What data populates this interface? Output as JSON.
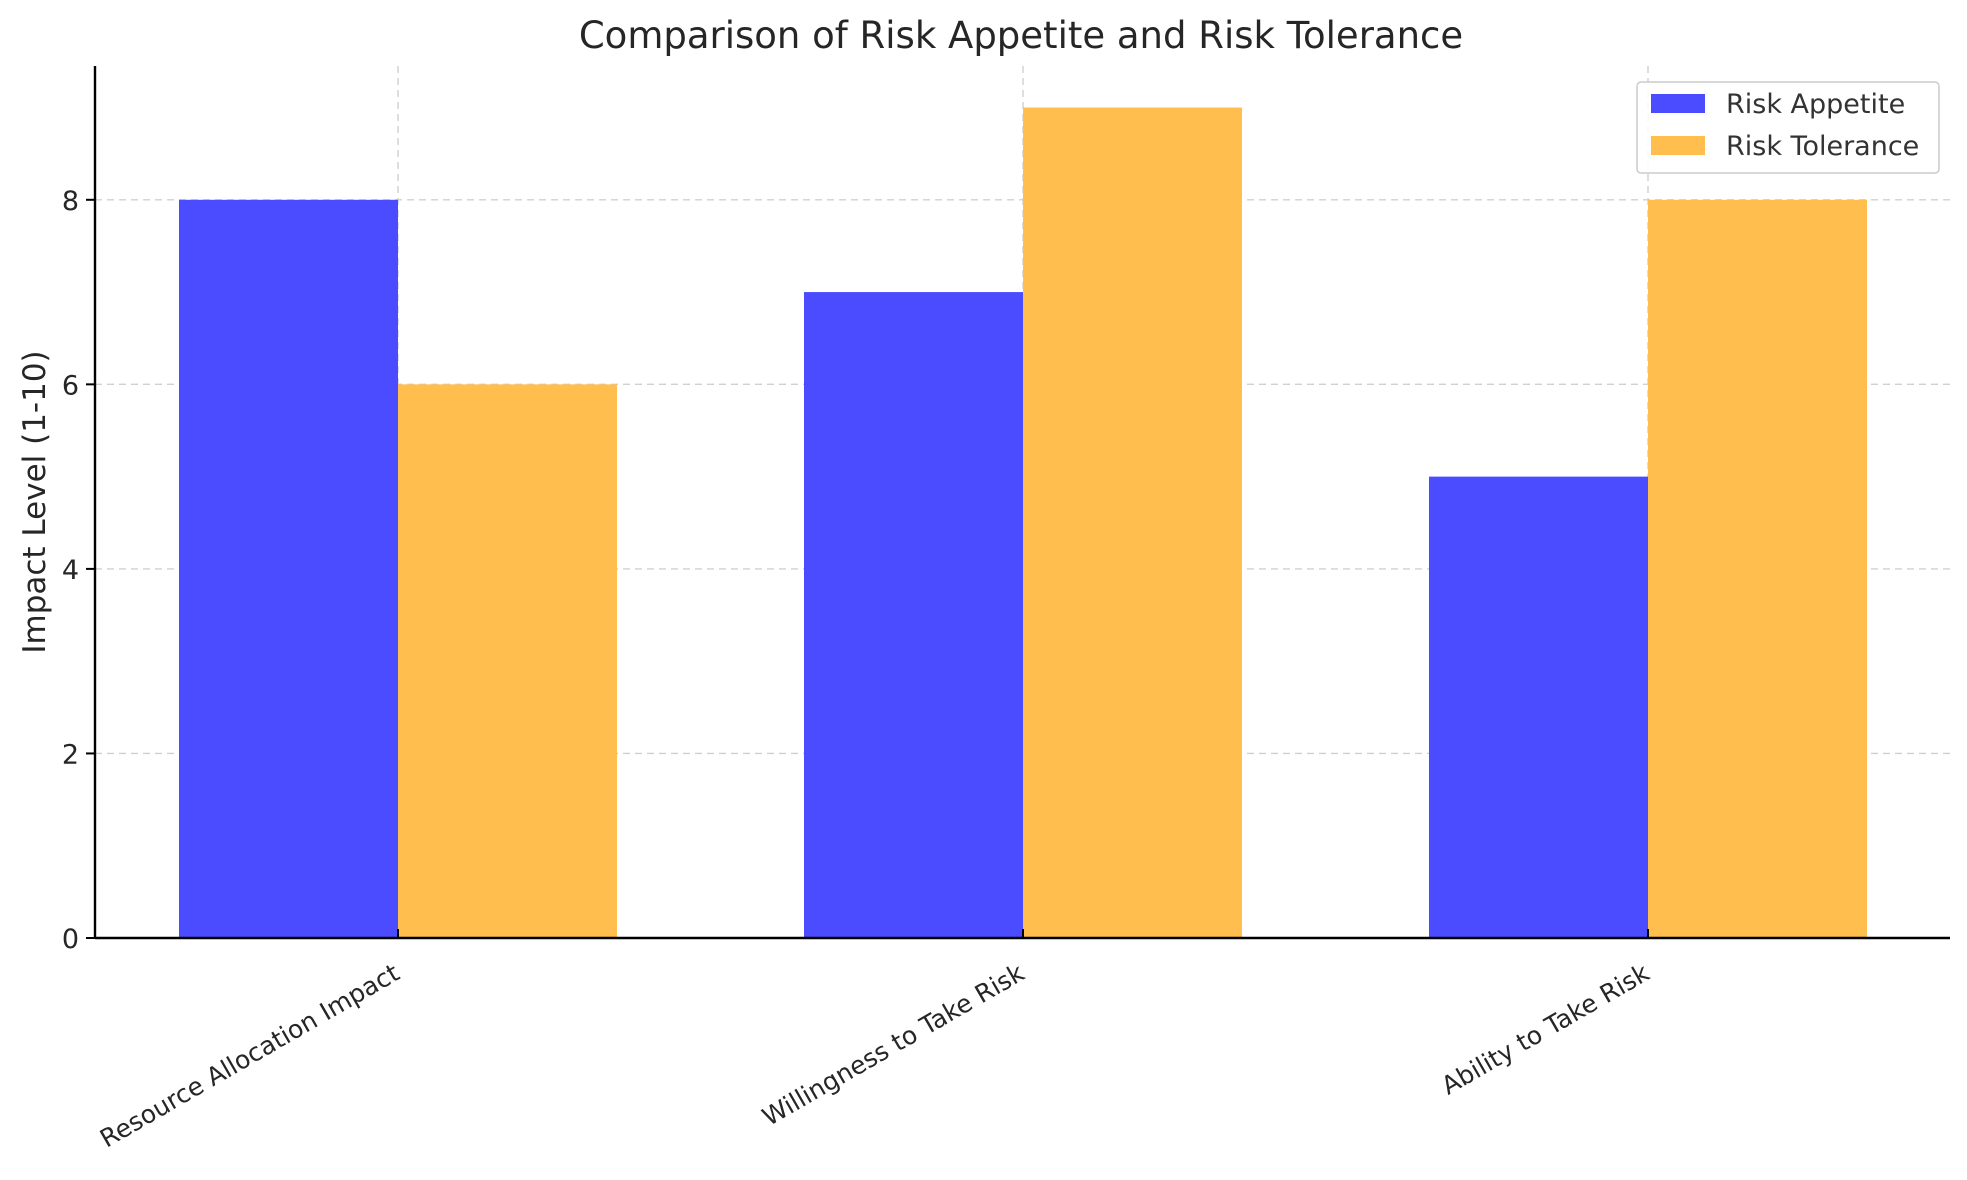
{
  "chart_data": {
    "type": "bar",
    "title": "Comparison of Risk Appetite and Risk Tolerance",
    "xlabel": "",
    "ylabel": "Impact Level (1-10)",
    "categories": [
      "Resource Allocation Impact",
      "Willingness to Take Risk",
      "Ability to Take Risk"
    ],
    "series": [
      {
        "name": "Risk Appetite",
        "values": [
          8,
          7,
          5
        ],
        "color": "#4b4bff"
      },
      {
        "name": "Risk Tolerance",
        "values": [
          6,
          9,
          8
        ],
        "color": "#ffbe4d"
      }
    ],
    "ylim": [
      0,
      9.45
    ],
    "yticks": [
      0,
      2,
      4,
      6,
      8
    ],
    "grid": true,
    "legend": "top-right"
  }
}
